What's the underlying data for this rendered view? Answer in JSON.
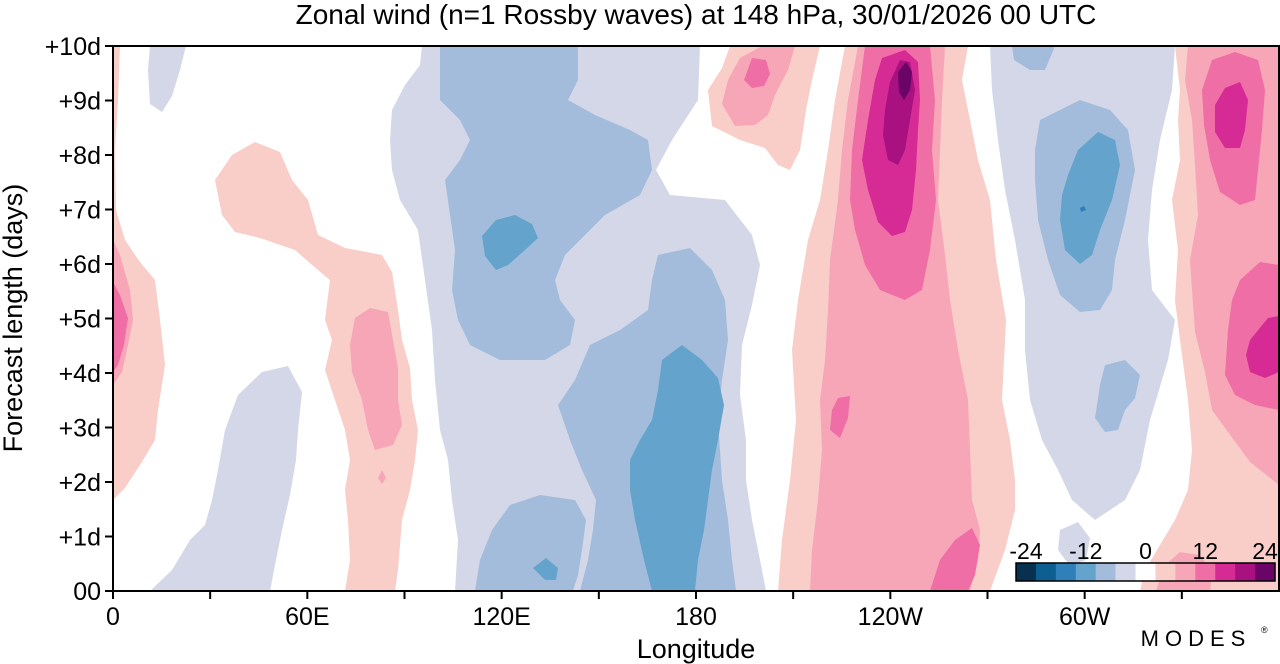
{
  "chart_data": {
    "type": "heatmap",
    "title": "Zonal wind (n=1 Rossby waves) at 148 hPa,  30/01/2026  00 UTC",
    "xlabel": "Longitude",
    "ylabel": "Forecast length (days)",
    "x_ticks": [
      "0",
      "60E",
      "120E",
      "180",
      "120W",
      "60W"
    ],
    "y_ticks": [
      "00",
      "+1d",
      "+2d",
      "+3d",
      "+4d",
      "+5d",
      "+6d",
      "+7d",
      "+8d",
      "+9d",
      "+10d"
    ],
    "xlim": [
      0,
      360
    ],
    "ylim": [
      0,
      10
    ],
    "colorbar": {
      "ticks": [
        "-24",
        "-12",
        "0",
        "12",
        "24"
      ],
      "levels": [
        -24,
        -20,
        -16,
        -12,
        -8,
        -4,
        4,
        8,
        12,
        16,
        20,
        24
      ],
      "colors": [
        "#08304f",
        "#0d5f92",
        "#2f7fb8",
        "#64a3cc",
        "#a3bcdb",
        "#d4d7e8",
        "#ffffff",
        "#f9cdc8",
        "#f7a6b8",
        "#ef6ea6",
        "#d62a94",
        "#a8117f",
        "#6a0466"
      ]
    },
    "features": [
      {
        "type": "positive",
        "level": 4,
        "lon": [
          0,
          15
        ],
        "days": [
          1.6,
          10
        ],
        "peak_day": 5,
        "max": 12
      },
      {
        "type": "negative",
        "level": -4,
        "lon": [
          10,
          25
        ],
        "days": [
          8.8,
          10
        ],
        "max": -8
      },
      {
        "type": "positive",
        "level": 4,
        "lon": [
          34,
          100
        ],
        "days": [
          0,
          8.3
        ],
        "peak_day": 4,
        "max": 12
      },
      {
        "type": "negative",
        "level": -4,
        "lon": [
          12,
          62
        ],
        "days": [
          0,
          4.2
        ],
        "max": -8
      },
      {
        "type": "negative",
        "level": -4,
        "lon": [
          97,
          230
        ],
        "days": [
          0,
          10
        ],
        "max": -20
      },
      {
        "type": "negative",
        "level": -16,
        "lon": [
          120,
          133
        ],
        "days": [
          6.2,
          6.9
        ],
        "max": -16
      },
      {
        "type": "negative",
        "level": -16,
        "lon": [
          162,
          189
        ],
        "days": [
          0,
          4.4
        ],
        "max": -20
      },
      {
        "type": "positive",
        "level": 4,
        "lon": [
          184,
          218
        ],
        "days": [
          8.2,
          10
        ],
        "peak_day": 9.5,
        "max": 16
      },
      {
        "type": "positive",
        "level": 4,
        "lon": [
          207,
          278
        ],
        "days": [
          0,
          10
        ],
        "peak_day": 9,
        "max": 24
      },
      {
        "type": "negative",
        "level": -4,
        "lon": [
          270,
          330
        ],
        "days": [
          1.7,
          10
        ],
        "max": -16
      },
      {
        "type": "positive",
        "level": 4,
        "lon": [
          322,
          360
        ],
        "days": [
          0,
          10
        ],
        "peak_day": 8.5,
        "max": 20
      }
    ]
  },
  "watermark": "MODES"
}
